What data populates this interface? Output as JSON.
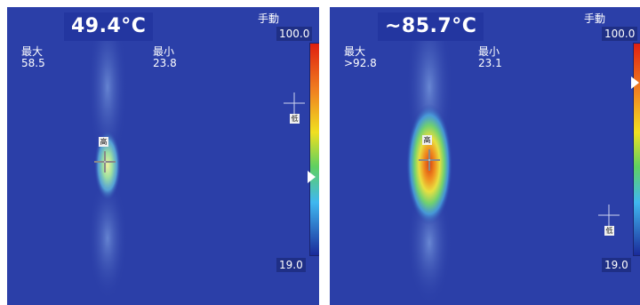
{
  "left": {
    "center_temp": "49.4°C",
    "mode": "手動",
    "scale_max": "100.0",
    "scale_min": "19.0",
    "max_label": "最大",
    "max_value": "58.5",
    "min_label": "最小",
    "min_value": "23.8",
    "high_tag": "高",
    "low_tag": "低"
  },
  "right": {
    "center_temp": "~85.7°C",
    "mode": "手動",
    "scale_max": "100.0",
    "scale_min": "19.0",
    "max_label": "最大",
    "max_value": ">92.8",
    "min_label": "最小",
    "min_value": "23.1",
    "high_tag": "高",
    "low_tag": "低"
  },
  "colors": {
    "background": "#2b3fa8",
    "scale_hot": "#e02010",
    "scale_cold": "#1a2a9a"
  }
}
